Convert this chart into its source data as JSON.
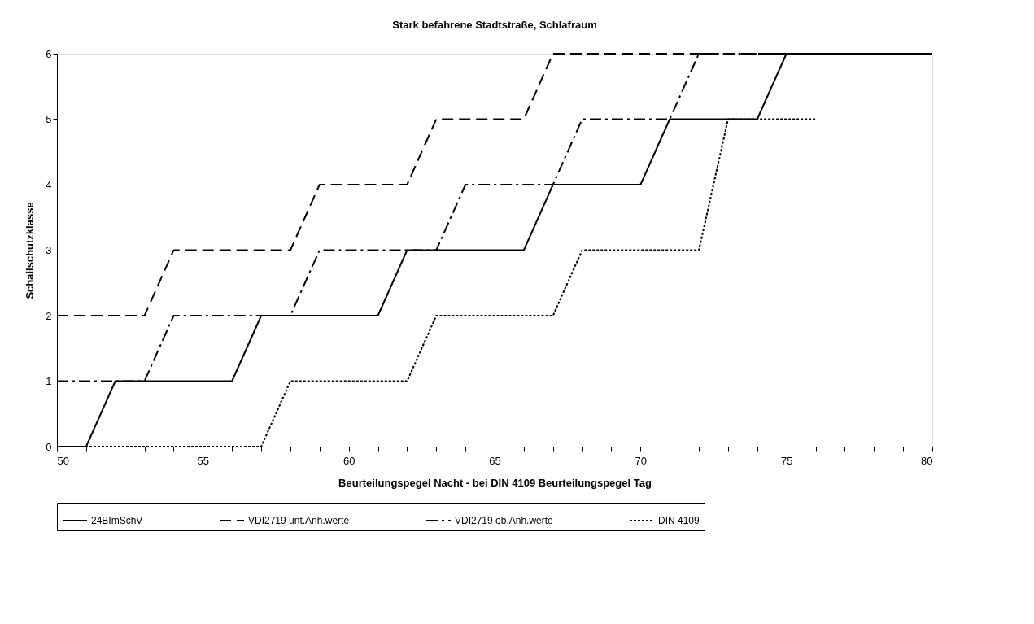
{
  "chart_data": {
    "type": "line",
    "title": "Stark befahrene Stadtstraße, Schlafraum",
    "xlabel": "Beurteilungspegel Nacht - bei DIN 4109 Beurteilungspegel Tag",
    "ylabel": "Schallschutzklasse",
    "xlim": [
      50,
      80
    ],
    "ylim": [
      0,
      6
    ],
    "xticks": [
      50,
      {
        "value": 51,
        "label": null
      },
      {
        "value": 52,
        "label": null
      },
      {
        "value": 53,
        "label": null
      },
      {
        "value": 54,
        "label": null
      },
      55,
      {
        "value": 56,
        "label": null
      },
      {
        "value": 57,
        "label": null
      },
      {
        "value": 58,
        "label": null
      },
      {
        "value": 59,
        "label": null
      },
      60,
      {
        "value": 61,
        "label": null
      },
      {
        "value": 62,
        "label": null
      },
      {
        "value": 63,
        "label": null
      },
      {
        "value": 64,
        "label": null
      },
      65,
      {
        "value": 66,
        "label": null
      },
      {
        "value": 67,
        "label": null
      },
      {
        "value": 68,
        "label": null
      },
      {
        "value": 69,
        "label": null
      },
      70,
      {
        "value": 71,
        "label": null
      },
      {
        "value": 72,
        "label": null
      },
      {
        "value": 73,
        "label": null
      },
      {
        "value": 74,
        "label": null
      },
      75,
      {
        "value": 76,
        "label": null
      },
      {
        "value": 77,
        "label": null
      },
      {
        "value": 78,
        "label": null
      },
      {
        "value": 79,
        "label": null
      },
      80
    ],
    "yticks": [
      0,
      1,
      2,
      3,
      4,
      5,
      6
    ],
    "grid": false,
    "legend": "bottom",
    "marker": "none",
    "series": [
      {
        "name": "24BImSchV",
        "color": "#000000",
        "line_style": "solid",
        "x": [
          50,
          51,
          52,
          56,
          57,
          61,
          62,
          66,
          67,
          70,
          71,
          74,
          75,
          80
        ],
        "values": [
          0,
          0,
          1,
          1,
          2,
          2,
          3,
          3,
          4,
          4,
          5,
          5,
          6,
          6
        ]
      },
      {
        "name": "VDI2719 unt.Anh.werte",
        "color": "#000000",
        "line_style": "dashed",
        "x": [
          50,
          53,
          54,
          58,
          59,
          62,
          63,
          66,
          67,
          80
        ],
        "values": [
          2,
          2,
          3,
          3,
          4,
          4,
          5,
          5,
          6,
          6
        ]
      },
      {
        "name": "VDI2719 ob.Anh.werte",
        "color": "#000000",
        "line_style": "dashdot",
        "x": [
          50,
          53,
          54,
          58,
          59,
          63,
          64,
          67,
          68,
          71,
          72,
          80
        ],
        "values": [
          1,
          1,
          2,
          2,
          3,
          3,
          4,
          4,
          5,
          5,
          6,
          6
        ]
      },
      {
        "name": "DIN 4109",
        "color": "#000000",
        "line_style": "dotted",
        "x": [
          50,
          57,
          58,
          62,
          63,
          67,
          68,
          72,
          73,
          76
        ],
        "values": [
          0,
          0,
          1,
          1,
          2,
          2,
          3,
          3,
          5,
          5
        ]
      }
    ]
  }
}
